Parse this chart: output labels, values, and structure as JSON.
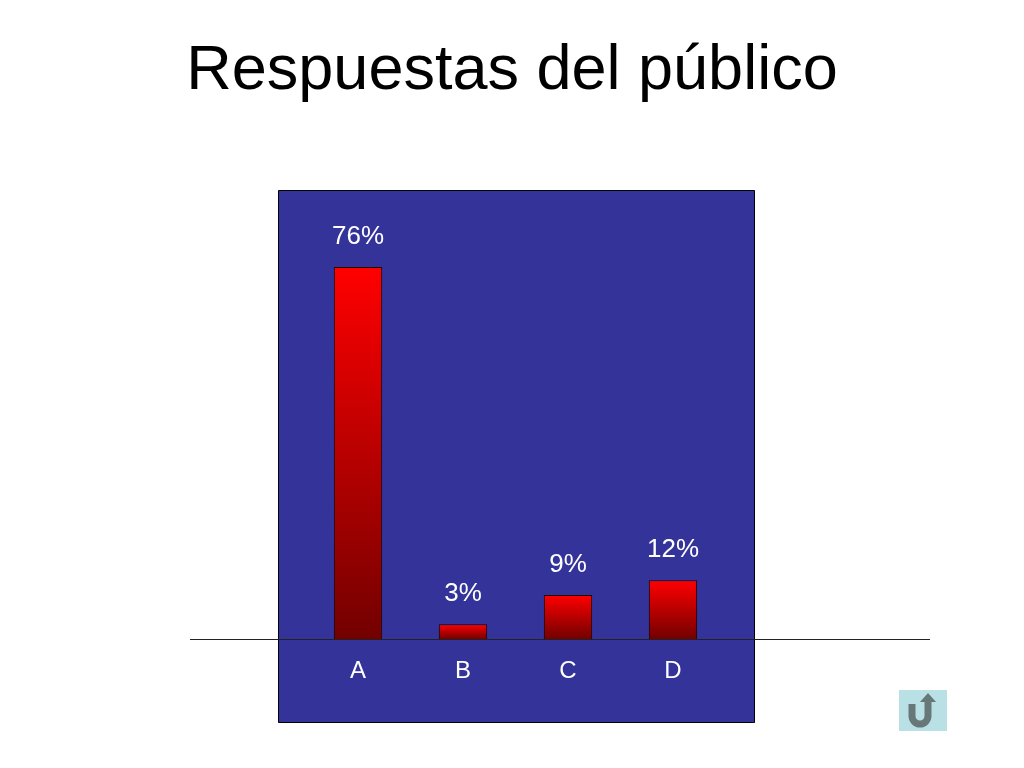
{
  "chart_data": {
    "type": "bar",
    "title": "Respuestas del público",
    "categories": [
      "A",
      "B",
      "C",
      "D"
    ],
    "values": [
      76,
      3,
      9,
      12
    ],
    "color": "#ff0000",
    "value_labels": [
      "76%",
      "3%",
      "9%",
      "12%"
    ]
  }
}
